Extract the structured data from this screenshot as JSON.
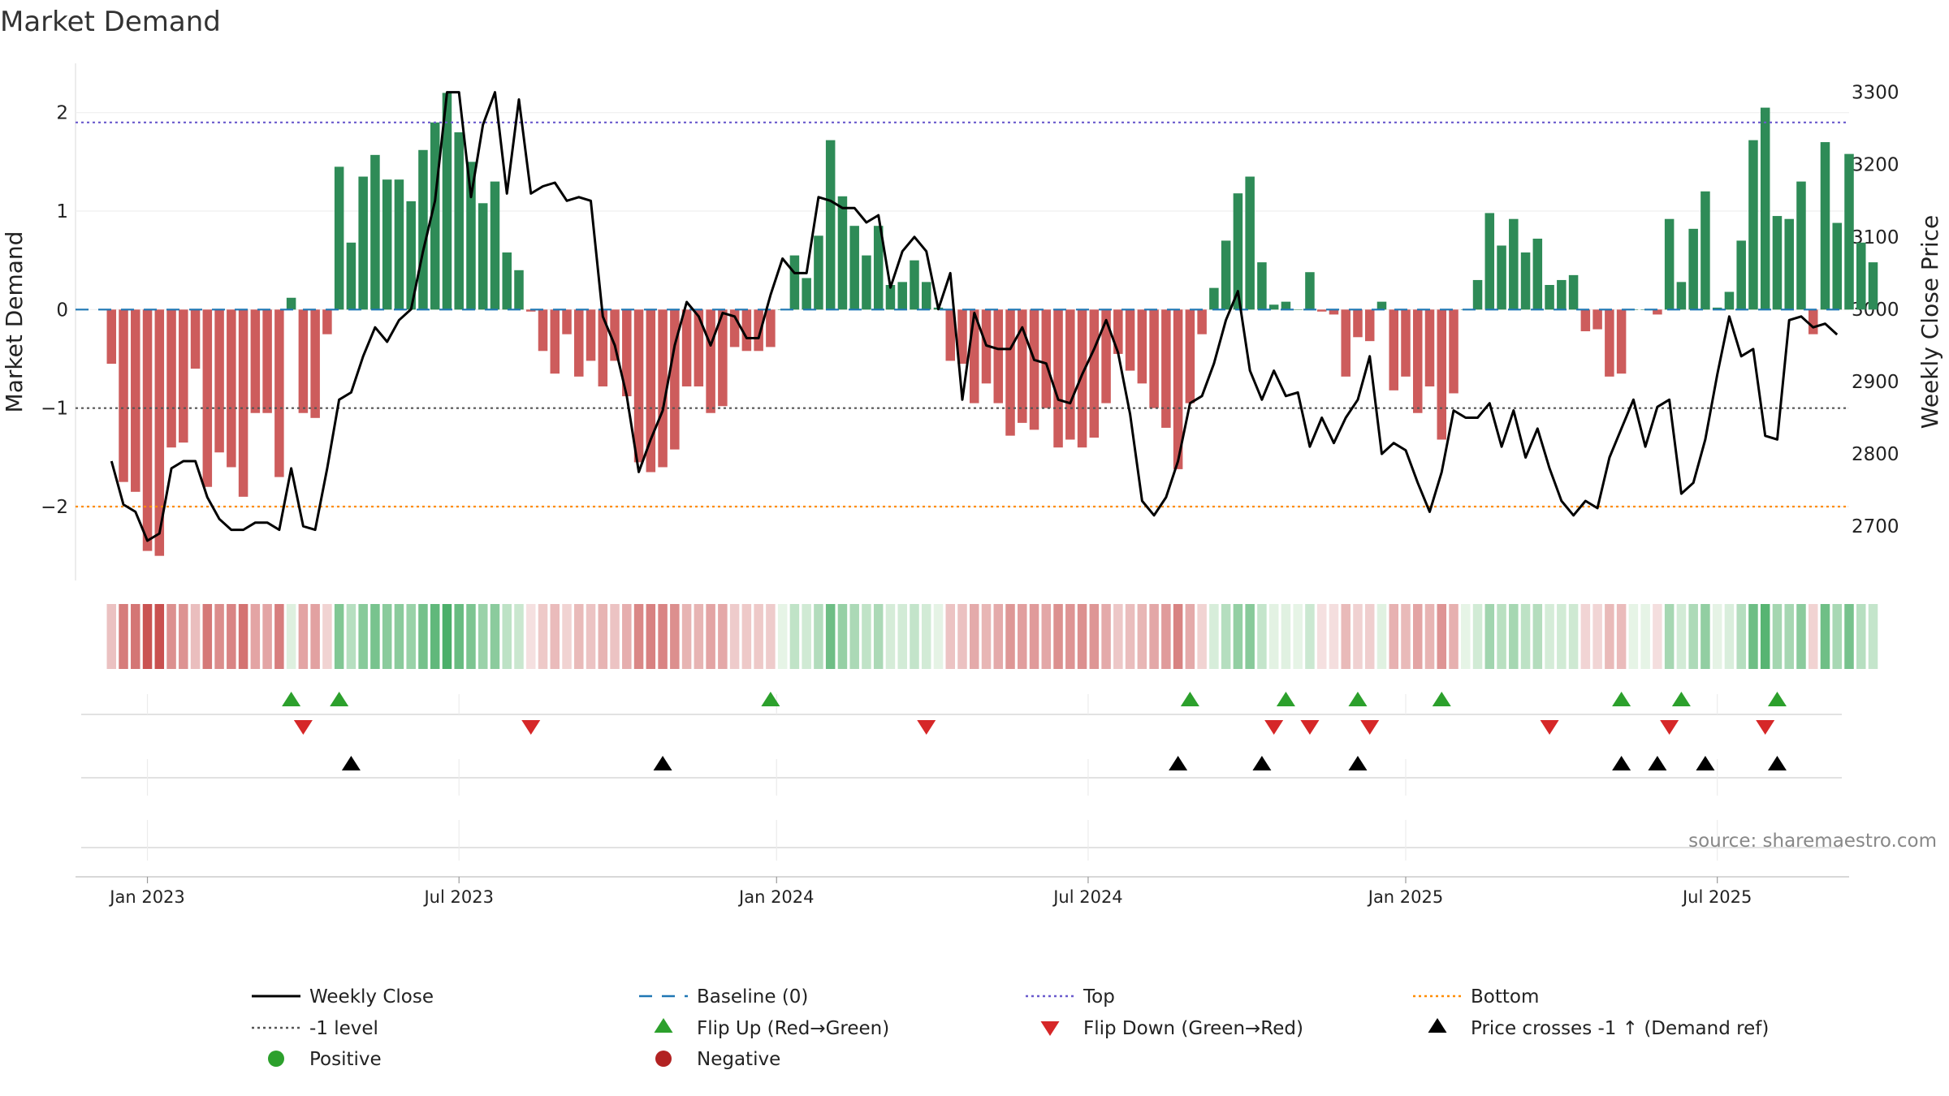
{
  "chart_data": {
    "type": "bar",
    "title": "Market Demand",
    "ylabel_left": "Market Demand",
    "ylabel_right": "Weekly Close Price",
    "ylim_left": [
      -2.75,
      2.5
    ],
    "ylim_right": [
      2625,
      3340
    ],
    "yticks_left": [
      {
        "value": 2,
        "label": "2"
      },
      {
        "value": 1,
        "label": "1"
      },
      {
        "value": 0,
        "label": "0"
      },
      {
        "value": -1,
        "label": "−1"
      },
      {
        "value": -2,
        "label": "−2"
      }
    ],
    "yticks_right": [
      3300,
      3200,
      3100,
      3000,
      2900,
      2800,
      2700
    ],
    "x_start": "2022-12-18",
    "x_step_days": 7,
    "x_range": [
      -3,
      145
    ],
    "xticks": [
      {
        "week": 3,
        "label": "Jan 2023"
      },
      {
        "week": 29,
        "label": "Jul 2023"
      },
      {
        "week": 55.5,
        "label": "Jan 2024"
      },
      {
        "week": 81.5,
        "label": "Jul 2024"
      },
      {
        "week": 108,
        "label": "Jan 2025"
      },
      {
        "week": 134,
        "label": "Jul 2025"
      }
    ],
    "reference_lines": {
      "top": 1.9,
      "level_minus1": -1,
      "bottom": -2,
      "baseline": 0
    },
    "demand": [
      -0.55,
      -1.75,
      -1.85,
      -2.45,
      -2.5,
      -1.4,
      -1.35,
      -0.6,
      -1.8,
      -1.45,
      -1.6,
      -1.9,
      -1.05,
      -1.05,
      -1.7,
      0.12,
      -1.05,
      -1.1,
      -0.25,
      1.45,
      0.68,
      1.35,
      1.57,
      1.32,
      1.32,
      1.1,
      1.62,
      1.9,
      2.2,
      1.8,
      1.5,
      1.08,
      1.3,
      0.58,
      0.4,
      -0.02,
      -0.42,
      -0.65,
      -0.25,
      -0.68,
      -0.52,
      -0.78,
      -0.52,
      -0.88,
      -1.55,
      -1.65,
      -1.6,
      -1.42,
      -0.78,
      -0.78,
      -1.05,
      -0.98,
      -0.38,
      -0.42,
      -0.42,
      -0.38,
      0.0,
      0.55,
      0.32,
      0.75,
      1.72,
      1.15,
      0.85,
      0.55,
      0.85,
      0.25,
      0.28,
      0.5,
      0.28,
      0.02,
      -0.52,
      -0.55,
      -0.95,
      -0.75,
      -0.95,
      -1.28,
      -1.15,
      -1.22,
      -1.0,
      -1.4,
      -1.32,
      -1.4,
      -1.3,
      -0.95,
      -0.45,
      -0.62,
      -0.75,
      -1.0,
      -1.2,
      -1.62,
      -0.95,
      -0.25,
      0.22,
      0.7,
      1.18,
      1.35,
      0.48,
      0.05,
      0.08,
      0.0,
      0.38,
      -0.02,
      -0.05,
      -0.68,
      -0.28,
      -0.32,
      0.08,
      -0.82,
      -0.68,
      -1.05,
      -0.78,
      -1.32,
      -0.85,
      0.0,
      0.3,
      0.98,
      0.65,
      0.92,
      0.58,
      0.72,
      0.25,
      0.3,
      0.35,
      -0.22,
      -0.2,
      -0.68,
      -0.65,
      0.0,
      0.0,
      -0.05,
      0.92,
      0.28,
      0.82,
      1.2,
      0.02,
      0.18,
      0.7,
      1.72,
      2.05,
      0.95,
      0.92,
      1.3,
      -0.25,
      1.7,
      0.88,
      1.58,
      0.68,
      0.48
    ],
    "price": [
      2790,
      2730,
      2720,
      2680,
      2690,
      2780,
      2790,
      2790,
      2740,
      2710,
      2695,
      2695,
      2705,
      2705,
      2695,
      2780,
      2700,
      2695,
      2780,
      2875,
      2885,
      2935,
      2975,
      2955,
      2985,
      3000,
      3080,
      3150,
      3300,
      3300,
      3155,
      3255,
      3300,
      3160,
      3290,
      3160,
      3170,
      3175,
      3150,
      3155,
      3150,
      2990,
      2950,
      2880,
      2775,
      2820,
      2860,
      2950,
      3010,
      2990,
      2950,
      2995,
      2990,
      2960,
      2960,
      3020,
      3070,
      3050,
      3050,
      3155,
      3150,
      3140,
      3140,
      3120,
      3130,
      3030,
      3080,
      3100,
      3080,
      3000,
      3050,
      2875,
      2995,
      2950,
      2945,
      2945,
      2975,
      2930,
      2925,
      2875,
      2870,
      2910,
      2945,
      2985,
      2940,
      2855,
      2735,
      2715,
      2740,
      2790,
      2870,
      2880,
      2925,
      2985,
      3025,
      2915,
      2875,
      2915,
      2880,
      2885,
      2810,
      2850,
      2815,
      2850,
      2875,
      2935,
      2800,
      2815,
      2805,
      2760,
      2720,
      2775,
      2860,
      2850,
      2850,
      2870,
      2810,
      2860,
      2795,
      2835,
      2780,
      2735,
      2715,
      2735,
      2725,
      2795,
      2835,
      2875,
      2810,
      2865,
      2875,
      2745,
      2760,
      2820,
      2910,
      2990,
      2935,
      2945,
      2825,
      2820,
      2985,
      2990,
      2975,
      2980,
      2965
    ],
    "markers": {
      "flip_up": [
        15,
        19,
        55,
        90,
        98,
        104,
        111,
        126,
        131,
        139
      ],
      "flip_down": [
        16,
        35,
        68,
        97,
        100,
        105,
        120,
        130,
        138
      ],
      "price_cross": [
        20,
        46,
        89,
        96,
        104,
        126,
        129,
        133,
        139
      ]
    },
    "colors": {
      "positive_bar": "#2e8b57",
      "negative_bar": "#cd5c5c",
      "price_line": "#000000",
      "baseline": "#1f77b4",
      "top": "#6a5acd",
      "bottom": "#ff8c00",
      "level": "#555555",
      "flip_up": "#2ca02c",
      "flip_down": "#d62728",
      "price_cross": "#000000",
      "positive_dot": "#2ca02c",
      "negative_dot": "#b22222"
    },
    "legend": [
      {
        "label": "Weekly Close",
        "kind": "line-solid",
        "color": "#000000"
      },
      {
        "label": "Baseline (0)",
        "kind": "line-dash",
        "color": "#1f77b4"
      },
      {
        "label": "Top",
        "kind": "line-dot",
        "color": "#6a5acd"
      },
      {
        "label": "Bottom",
        "kind": "line-dot",
        "color": "#ff8c00"
      },
      {
        "label": "-1 level",
        "kind": "line-dot",
        "color": "#555555"
      },
      {
        "label": "Flip Up (Red→Green)",
        "kind": "tri-up",
        "color": "#2ca02c"
      },
      {
        "label": "Flip Down (Green→Red)",
        "kind": "tri-down",
        "color": "#d62728"
      },
      {
        "label": "Price crosses -1 ↑ (Demand ref)",
        "kind": "tri-up",
        "color": "#000000"
      },
      {
        "label": "Positive",
        "kind": "dot",
        "color": "#2ca02c"
      },
      {
        "label": "Negative",
        "kind": "dot",
        "color": "#b22222"
      }
    ],
    "source": "source: sharemaestro.com"
  }
}
